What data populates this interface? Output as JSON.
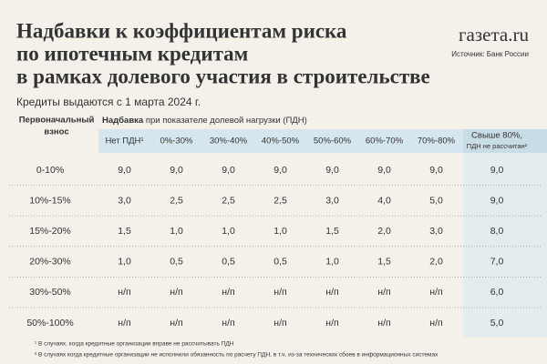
{
  "header": {
    "title": [
      "Надбавки к коэффициентам риска",
      "по ипотечным кредитам",
      "в рамках долевого участия в строительстве"
    ],
    "brand": "газета.ru",
    "source": "Источник: Банк России",
    "subtitle": "Кредиты выдаются с 1 марта 2024 г."
  },
  "table": {
    "row_header": [
      "Первоначальный",
      "взнос"
    ],
    "group_header": [
      "Надбавка",
      "при показателе долевой нагрузки (ПДН)"
    ],
    "columns": [
      "Нет ПДН¹",
      "0%-30%",
      "30%-40%",
      "40%-50%",
      "50%-60%",
      "60%-70%",
      "70%-80%",
      [
        "Свыше 80%,",
        "ПДН не рассчитан²"
      ]
    ],
    "rows": [
      [
        "0-10%",
        "9,0",
        "9,0",
        "9,0",
        "9,0",
        "9,0",
        "9,0",
        "9,0",
        "9,0"
      ],
      [
        "10%-15%",
        "3,0",
        "2,5",
        "2,5",
        "2,5",
        "3,0",
        "4,0",
        "5,0",
        "9,0"
      ],
      [
        "15%-20%",
        "1,5",
        "1,0",
        "1,0",
        "1,0",
        "1,5",
        "2,0",
        "3,0",
        "8,0"
      ],
      [
        "20%-30%",
        "1,0",
        "0,5",
        "0,5",
        "0,5",
        "1,0",
        "1,5",
        "2,0",
        "7,0"
      ],
      [
        "30%-50%",
        "н/п",
        "н/п",
        "н/п",
        "н/п",
        "н/п",
        "н/п",
        "н/п",
        "6,0"
      ],
      [
        "50%-100%",
        "н/п",
        "н/п",
        "н/п",
        "н/п",
        "н/п",
        "н/п",
        "н/п",
        "5,0"
      ]
    ]
  },
  "footnotes": [
    "¹  В случаях, когда кредитные организации вправе не рассчитывать ПДН",
    "²  В случаях когда кредитные организации не исполнили обязанность по расчету ПДН, в т.ч. из-за технических сбоев в информационных системах"
  ]
}
